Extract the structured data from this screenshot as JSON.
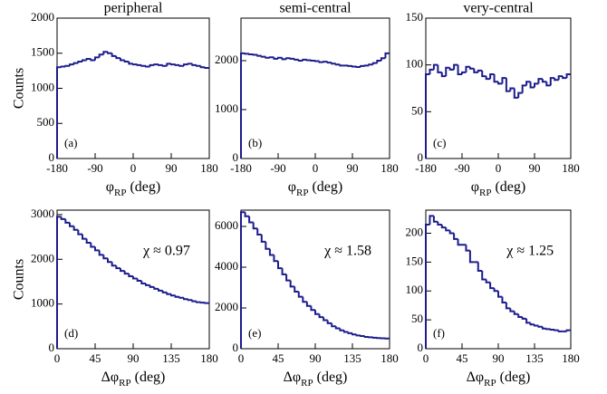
{
  "chart_data": [
    {
      "type": "histogram",
      "title": "peripheral",
      "ylabel": "Counts",
      "xlabel_symbol": "φ",
      "xlabel_subscript": "RP",
      "xlabel_unit": "(deg)",
      "panel_label": "(a)",
      "color": "#1c1c8c",
      "bins": [
        -180,
        -170,
        -160,
        -150,
        -140,
        -130,
        -120,
        -110,
        -100,
        -90,
        -80,
        -70,
        -60,
        -50,
        -40,
        -30,
        -20,
        -10,
        0,
        10,
        20,
        30,
        40,
        50,
        60,
        70,
        80,
        90,
        100,
        110,
        120,
        130,
        140,
        150,
        160,
        170,
        180
      ],
      "values": [
        1300,
        1310,
        1320,
        1340,
        1360,
        1380,
        1400,
        1420,
        1400,
        1440,
        1480,
        1520,
        1500,
        1460,
        1430,
        1400,
        1380,
        1350,
        1340,
        1330,
        1320,
        1310,
        1330,
        1340,
        1330,
        1320,
        1350,
        1340,
        1330,
        1320,
        1340,
        1350,
        1330,
        1320,
        1300,
        1290
      ],
      "xlim": [
        -180,
        180
      ],
      "xticks": [
        -180,
        -90,
        0,
        90,
        180
      ],
      "ylim": [
        0,
        2000
      ],
      "yticks": [
        0,
        500,
        1000,
        1500,
        2000
      ]
    },
    {
      "type": "histogram",
      "title": "semi-central",
      "xlabel_symbol": "φ",
      "xlabel_subscript": "RP",
      "xlabel_unit": "(deg)",
      "panel_label": "(b)",
      "color": "#1c1c8c",
      "bins": [
        -180,
        -170,
        -160,
        -150,
        -140,
        -130,
        -120,
        -110,
        -100,
        -90,
        -80,
        -70,
        -60,
        -50,
        -40,
        -30,
        -20,
        -10,
        0,
        10,
        20,
        30,
        40,
        50,
        60,
        70,
        80,
        90,
        100,
        110,
        120,
        130,
        140,
        150,
        160,
        170,
        180
      ],
      "values": [
        2150,
        2140,
        2130,
        2120,
        2100,
        2080,
        2060,
        2070,
        2040,
        2060,
        2030,
        2050,
        2040,
        2020,
        2000,
        2020,
        2010,
        2000,
        1990,
        1970,
        1980,
        1960,
        1940,
        1920,
        1900,
        1900,
        1890,
        1880,
        1870,
        1890,
        1900,
        1920,
        1950,
        2000,
        2050,
        2150
      ],
      "xlim": [
        -180,
        180
      ],
      "xticks": [
        -180,
        -90,
        0,
        90,
        180
      ],
      "ylim": [
        0,
        2870
      ],
      "yticks": [
        0,
        1000,
        2000
      ]
    },
    {
      "type": "histogram",
      "title": "very-central",
      "xlabel_symbol": "φ",
      "xlabel_subscript": "RP",
      "xlabel_unit": "(deg)",
      "panel_label": "(c)",
      "color": "#1c1c8c",
      "bins": [
        -180,
        -170,
        -160,
        -150,
        -140,
        -130,
        -120,
        -110,
        -100,
        -90,
        -80,
        -70,
        -60,
        -50,
        -40,
        -30,
        -20,
        -10,
        0,
        10,
        20,
        30,
        40,
        50,
        60,
        70,
        80,
        90,
        100,
        110,
        120,
        130,
        140,
        150,
        160,
        170,
        180
      ],
      "values": [
        90,
        95,
        100,
        92,
        88,
        97,
        95,
        100,
        90,
        92,
        98,
        96,
        92,
        94,
        88,
        85,
        90,
        82,
        80,
        86,
        72,
        75,
        65,
        70,
        78,
        82,
        76,
        80,
        85,
        82,
        78,
        86,
        84,
        88,
        86,
        90
      ],
      "xlim": [
        -180,
        180
      ],
      "xticks": [
        -180,
        -90,
        0,
        90,
        180
      ],
      "ylim": [
        0,
        150
      ],
      "yticks": [
        0,
        50,
        100,
        150
      ]
    },
    {
      "type": "histogram",
      "ylabel": "Counts",
      "xlabel_symbol": "Δφ",
      "xlabel_subscript": "RP",
      "xlabel_unit": "(deg)",
      "panel_label": "(d)",
      "annotation": "χ ≈ 0.97",
      "color": "#1c1c8c",
      "bins": [
        0,
        5,
        10,
        15,
        20,
        25,
        30,
        35,
        40,
        45,
        50,
        55,
        60,
        65,
        70,
        75,
        80,
        85,
        90,
        95,
        100,
        105,
        110,
        115,
        120,
        125,
        130,
        135,
        140,
        145,
        150,
        155,
        160,
        165,
        170,
        175,
        180
      ],
      "values": [
        2950,
        2900,
        2820,
        2740,
        2660,
        2560,
        2460,
        2370,
        2280,
        2200,
        2100,
        2020,
        1940,
        1860,
        1800,
        1740,
        1680,
        1620,
        1570,
        1520,
        1460,
        1420,
        1380,
        1340,
        1300,
        1260,
        1220,
        1190,
        1160,
        1140,
        1110,
        1090,
        1060,
        1040,
        1030,
        1020
      ],
      "xlim": [
        0,
        180
      ],
      "xticks": [
        0,
        45,
        90,
        135,
        180
      ],
      "ylim": [
        0,
        3100
      ],
      "yticks": [
        0,
        1000,
        2000,
        3000
      ]
    },
    {
      "type": "histogram",
      "xlabel_symbol": "Δφ",
      "xlabel_subscript": "RP",
      "xlabel_unit": "(deg)",
      "panel_label": "(e)",
      "annotation": "χ ≈ 1.58",
      "color": "#1c1c8c",
      "bins": [
        0,
        5,
        10,
        15,
        20,
        25,
        30,
        35,
        40,
        45,
        50,
        55,
        60,
        65,
        70,
        75,
        80,
        85,
        90,
        95,
        100,
        105,
        110,
        115,
        120,
        125,
        130,
        135,
        140,
        145,
        150,
        155,
        160,
        165,
        170,
        175,
        180
      ],
      "values": [
        6700,
        6500,
        6200,
        5900,
        5600,
        5250,
        4900,
        4600,
        4300,
        3950,
        3650,
        3350,
        3050,
        2800,
        2550,
        2300,
        2100,
        1900,
        1700,
        1550,
        1400,
        1250,
        1100,
        1000,
        900,
        820,
        760,
        700,
        650,
        620,
        580,
        560,
        540,
        520,
        510,
        500
      ],
      "xlim": [
        0,
        180
      ],
      "xticks": [
        0,
        45,
        90,
        135,
        180
      ],
      "ylim": [
        0,
        6800
      ],
      "yticks": [
        0,
        2000,
        4000,
        6000
      ]
    },
    {
      "type": "histogram",
      "xlabel_symbol": "Δφ",
      "xlabel_subscript": "RP",
      "xlabel_unit": "(deg)",
      "panel_label": "(f)",
      "annotation": "χ ≈ 1.25",
      "color": "#1c1c8c",
      "bins": [
        0,
        5,
        10,
        15,
        20,
        25,
        30,
        35,
        40,
        45,
        50,
        55,
        60,
        65,
        70,
        75,
        80,
        85,
        90,
        95,
        100,
        105,
        110,
        115,
        120,
        125,
        130,
        135,
        140,
        145,
        150,
        155,
        160,
        165,
        170,
        175,
        180
      ],
      "values": [
        215,
        230,
        220,
        215,
        210,
        205,
        200,
        190,
        180,
        180,
        170,
        150,
        150,
        135,
        120,
        115,
        105,
        100,
        90,
        80,
        70,
        65,
        60,
        55,
        52,
        45,
        42,
        40,
        38,
        35,
        34,
        33,
        32,
        30,
        30,
        32
      ],
      "xlim": [
        0,
        180
      ],
      "xticks": [
        0,
        45,
        90,
        135,
        180
      ],
      "ylim": [
        0,
        240
      ],
      "yticks": [
        0,
        50,
        100,
        150,
        200
      ]
    }
  ]
}
